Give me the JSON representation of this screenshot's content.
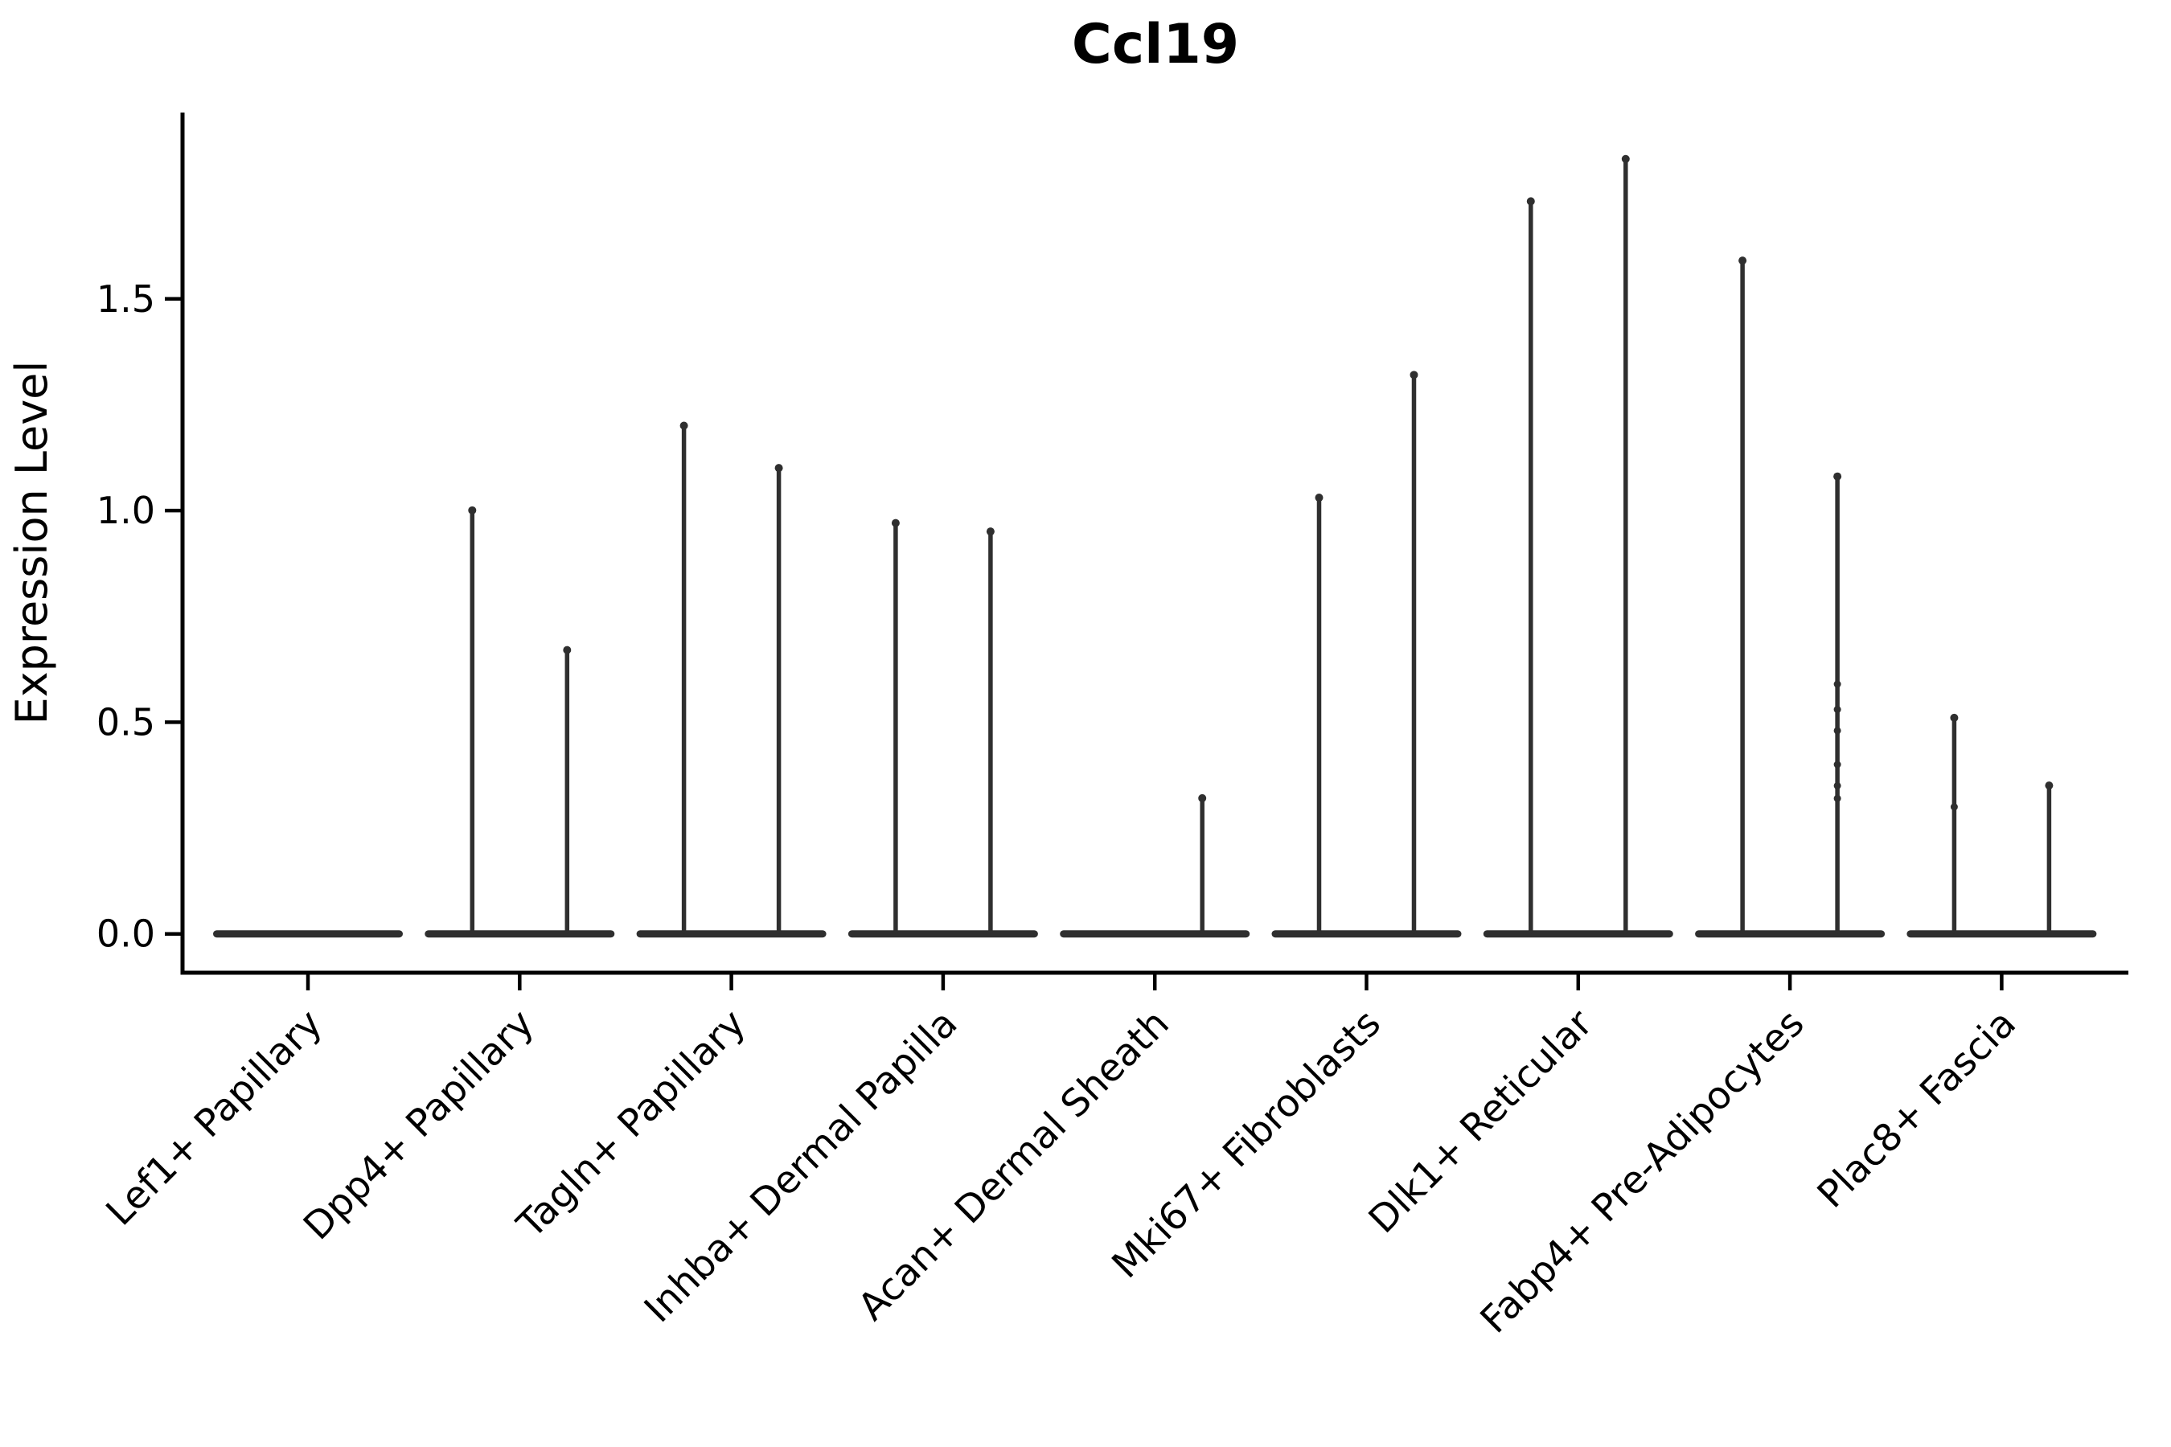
{
  "chart_data": {
    "type": "violin",
    "title": "Ccl19",
    "xlabel": "",
    "ylabel": "Expression Level",
    "ylim": [
      -0.09,
      1.94
    ],
    "grid": false,
    "legend": false,
    "violins_per_category": 2,
    "yticks": [
      {
        "value": 0.0,
        "label": "0.0"
      },
      {
        "value": 0.5,
        "label": "0.5"
      },
      {
        "value": 1.0,
        "label": "1.0"
      },
      {
        "value": 1.5,
        "label": "1.5"
      }
    ],
    "categories": [
      {
        "label": "Lef1+ Papillary",
        "violins": [
          {
            "max": 0.0,
            "points": []
          },
          {
            "max": 0.0,
            "points": []
          }
        ]
      },
      {
        "label": "Dpp4+ Papillary",
        "violins": [
          {
            "max": 1.01,
            "points": []
          },
          {
            "max": 0.68,
            "points": []
          }
        ]
      },
      {
        "label": "Tagln+ Papillary",
        "violins": [
          {
            "max": 1.21,
            "points": []
          },
          {
            "max": 1.11,
            "points": []
          }
        ]
      },
      {
        "label": "Inhba+ Dermal Papilla",
        "violins": [
          {
            "max": 0.98,
            "points": []
          },
          {
            "max": 0.96,
            "points": []
          }
        ]
      },
      {
        "label": "Acan+ Dermal Sheath",
        "violins": [
          {
            "max": 0.0,
            "points": []
          },
          {
            "max": 0.33,
            "points": []
          }
        ]
      },
      {
        "label": "Mki67+ Fibroblasts",
        "violins": [
          {
            "max": 1.04,
            "points": []
          },
          {
            "max": 1.33,
            "points": []
          }
        ]
      },
      {
        "label": "Dlk1+ Reticular",
        "violins": [
          {
            "max": 1.74,
            "points": []
          },
          {
            "max": 1.84,
            "points": []
          }
        ]
      },
      {
        "label": "Fabp4+ Pre-Adipocytes",
        "violins": [
          {
            "max": 1.6,
            "points": []
          },
          {
            "max": 1.09,
            "points": [
              0.59,
              0.53,
              0.48,
              0.4,
              0.35,
              0.32
            ]
          }
        ]
      },
      {
        "label": "Plac8+ Fascia",
        "violins": [
          {
            "max": 0.52,
            "points": [
              0.3
            ]
          },
          {
            "max": 0.36,
            "points": []
          }
        ]
      }
    ],
    "colors": {
      "violin": "#2f2f2f",
      "axis": "#000000",
      "background": "#ffffff"
    }
  }
}
